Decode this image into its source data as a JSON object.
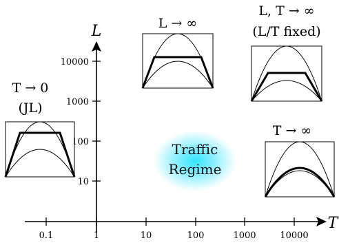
{
  "axes": {
    "x_label": "T",
    "y_label": "L",
    "x_ticks": [
      "0.1",
      "1",
      "10",
      "100",
      "1000",
      "10000"
    ],
    "y_ticks": [
      "10",
      "100",
      "1000",
      "10000"
    ]
  },
  "center_label": {
    "line1": "Traffic",
    "line2": "Regime",
    "glow_color": "#29e3ff"
  },
  "regimes": [
    {
      "id": "small-T",
      "caption_line1": "T → 0",
      "caption_line2": "(JL)"
    },
    {
      "id": "large-L",
      "caption_line1": "L → ∞",
      "caption_line2": ""
    },
    {
      "id": "large-L-T",
      "caption_line1": "L, T → ∞",
      "caption_line2": "(L/T fixed)"
    },
    {
      "id": "large-T",
      "caption_line1": "T → ∞",
      "caption_line2": ""
    }
  ]
}
